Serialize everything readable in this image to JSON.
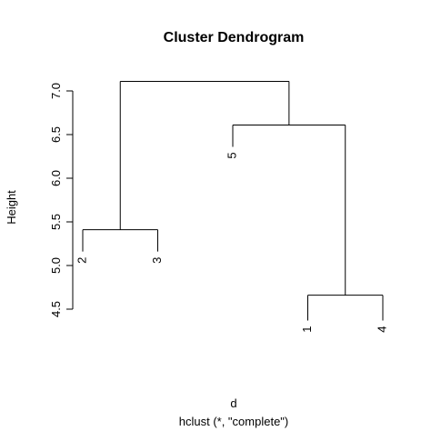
{
  "chart_data": {
    "type": "dendrogram",
    "title": "Cluster Dendrogram",
    "ylabel": "Height",
    "xlabel": "d",
    "sublabel": "hclust (*, \"complete\")",
    "ylim": [
      4.5,
      7.0
    ],
    "yticks": [
      4.5,
      5.0,
      5.5,
      6.0,
      6.5,
      7.0
    ],
    "ytick_labels": [
      "4.5",
      "5.0",
      "5.5",
      "6.0",
      "6.5",
      "7.0"
    ],
    "leaf_order": [
      "2",
      "3",
      "5",
      "1",
      "4"
    ],
    "merges": [
      {
        "left": "leaf:1",
        "right": "leaf:4",
        "height": 4.66
      },
      {
        "left": "leaf:2",
        "right": "leaf:3",
        "height": 5.41
      },
      {
        "left": "leaf:5",
        "right": "merge:0",
        "height": 6.61
      },
      {
        "left": "merge:1",
        "right": "merge:2",
        "height": 7.11
      }
    ],
    "leaf_heights": {
      "1": 4.37,
      "2": 5.16,
      "3": 5.16,
      "4": 4.37,
      "5": 6.36
    }
  }
}
